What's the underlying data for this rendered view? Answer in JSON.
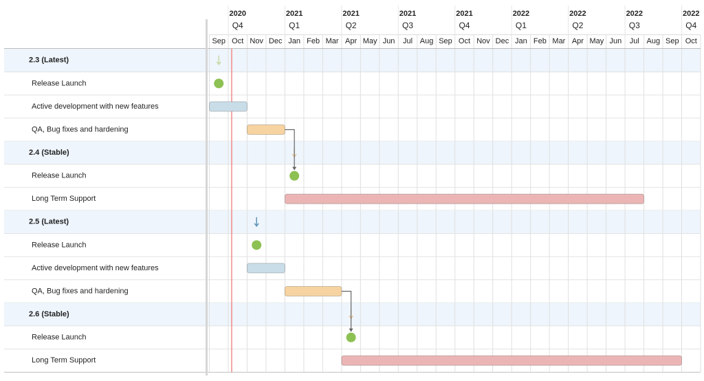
{
  "chart_data": {
    "type": "gantt",
    "xlim": [
      "2020-09",
      "2022-10"
    ],
    "categories": [
      "Sep",
      "Oct",
      "Nov",
      "Dec",
      "Jan",
      "Feb",
      "Mar",
      "Apr",
      "May",
      "Jun",
      "Jul",
      "Aug",
      "Sep",
      "Oct",
      "Nov",
      "Dec",
      "Jan",
      "Feb",
      "Mar",
      "Apr",
      "May",
      "Jun",
      "Jul",
      "Aug",
      "Sep",
      "Oct"
    ],
    "quarters": [
      {
        "year": "2020",
        "quarter": "Q4",
        "start": "2020-10"
      },
      {
        "year": "2021",
        "quarter": "Q1",
        "start": "2021-01"
      },
      {
        "year": "2021",
        "quarter": "Q2",
        "start": "2021-04"
      },
      {
        "year": "2021",
        "quarter": "Q3",
        "start": "2021-07"
      },
      {
        "year": "2021",
        "quarter": "Q4",
        "start": "2021-10"
      },
      {
        "year": "2022",
        "quarter": "Q1",
        "start": "2022-01"
      },
      {
        "year": "2022",
        "quarter": "Q2",
        "start": "2022-04"
      },
      {
        "year": "2022",
        "quarter": "Q3",
        "start": "2022-07"
      },
      {
        "year": "2022",
        "quarter": "Q4",
        "start": "2022-10"
      }
    ],
    "groups": [
      {
        "name": "2.3 (Latest)",
        "color": "#c8dba6",
        "tasks": [
          {
            "name": "Release Launch",
            "type": "milestone",
            "date": "2020-09",
            "color": "#8dc153"
          },
          {
            "name": "Active development with new features",
            "type": "bar",
            "start": "2020-09",
            "end": "2020-10",
            "color": "#c9dde8"
          },
          {
            "name": "QA, Bug fixes and hardening",
            "type": "bar",
            "start": "2020-11",
            "end": "2020-12",
            "color": "#f6d3a0"
          }
        ]
      },
      {
        "name": "2.4 (Stable)",
        "color": "#e8c9a0",
        "tasks": [
          {
            "name": "Release Launch",
            "type": "milestone",
            "date": "2021-01",
            "color": "#8dc153"
          },
          {
            "name": "Long Term Support",
            "type": "bar",
            "start": "2021-01",
            "end": "2022-07",
            "color": "#ecb5b5"
          }
        ]
      },
      {
        "name": "2.5 (Latest)",
        "color": "#5f93b5",
        "tasks": [
          {
            "name": "Release Launch",
            "type": "milestone",
            "date": "2020-11",
            "color": "#8dc153"
          },
          {
            "name": "Active development with new features",
            "type": "bar",
            "start": "2020-11",
            "end": "2020-12",
            "color": "#c9dde8"
          },
          {
            "name": "QA, Bug fixes and hardening",
            "type": "bar",
            "start": "2021-01",
            "end": "2021-03",
            "color": "#f6d3a0"
          }
        ]
      },
      {
        "name": "2.6 (Stable)",
        "color": "#e8c9a0",
        "tasks": [
          {
            "name": "Release Launch",
            "type": "milestone",
            "date": "2021-04",
            "color": "#8dc153"
          },
          {
            "name": "Long Term Support",
            "type": "bar",
            "start": "2021-04",
            "end": "2022-09",
            "color": "#ecb5b5"
          }
        ]
      }
    ]
  }
}
